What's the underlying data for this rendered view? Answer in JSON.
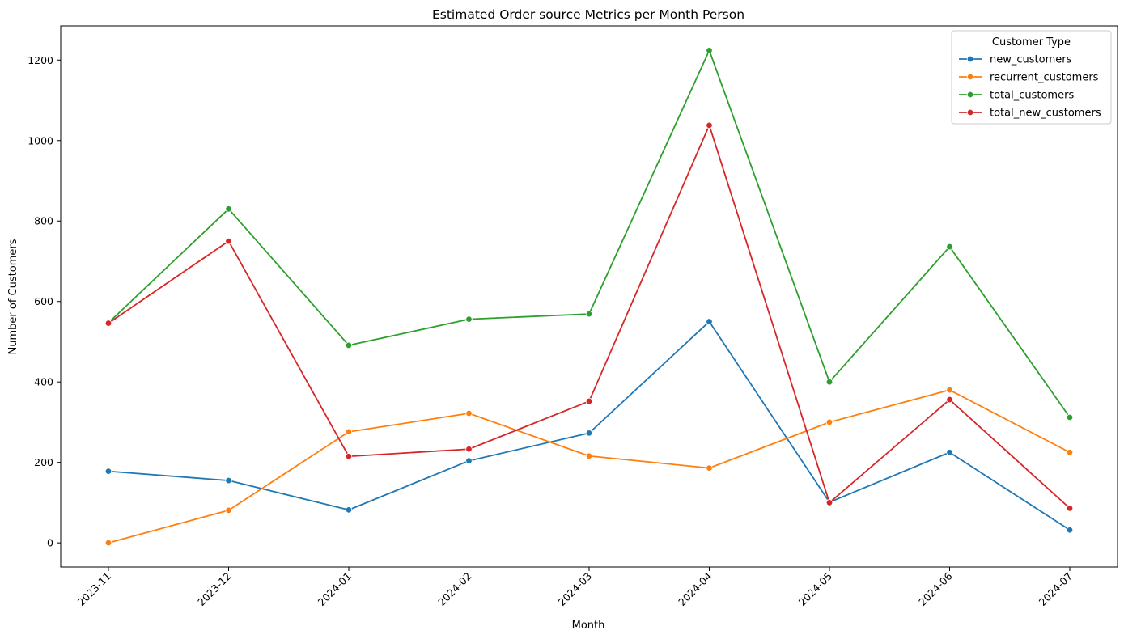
{
  "chart_data": {
    "type": "line",
    "title": "Estimated Order source Metrics per Month Person",
    "xlabel": "Month",
    "ylabel": "Number of Customers",
    "categories": [
      "2023-11",
      "2023-12",
      "2024-01",
      "2024-02",
      "2024-03",
      "2024-04",
      "2024-05",
      "2024-06",
      "2024-07"
    ],
    "ylim": [
      -60,
      1285
    ],
    "yticks": [
      0,
      200,
      400,
      600,
      800,
      1000,
      1200
    ],
    "grid": false,
    "legend": {
      "title": "Customer Type",
      "placement": "top-right"
    },
    "series": [
      {
        "name": "new_customers",
        "color": "#1f77b4",
        "values": [
          178,
          155,
          82,
          204,
          273,
          550,
          101,
          225,
          32
        ]
      },
      {
        "name": "recurrent_customers",
        "color": "#ff7f0e",
        "values": [
          0,
          81,
          276,
          322,
          216,
          186,
          300,
          380,
          225
        ]
      },
      {
        "name": "total_customers",
        "color": "#2ca02c",
        "values": [
          547,
          830,
          491,
          556,
          569,
          1224,
          400,
          736,
          312
        ]
      },
      {
        "name": "total_new_customers",
        "color": "#d62728",
        "values": [
          546,
          750,
          215,
          233,
          352,
          1038,
          100,
          356,
          86
        ]
      }
    ]
  }
}
